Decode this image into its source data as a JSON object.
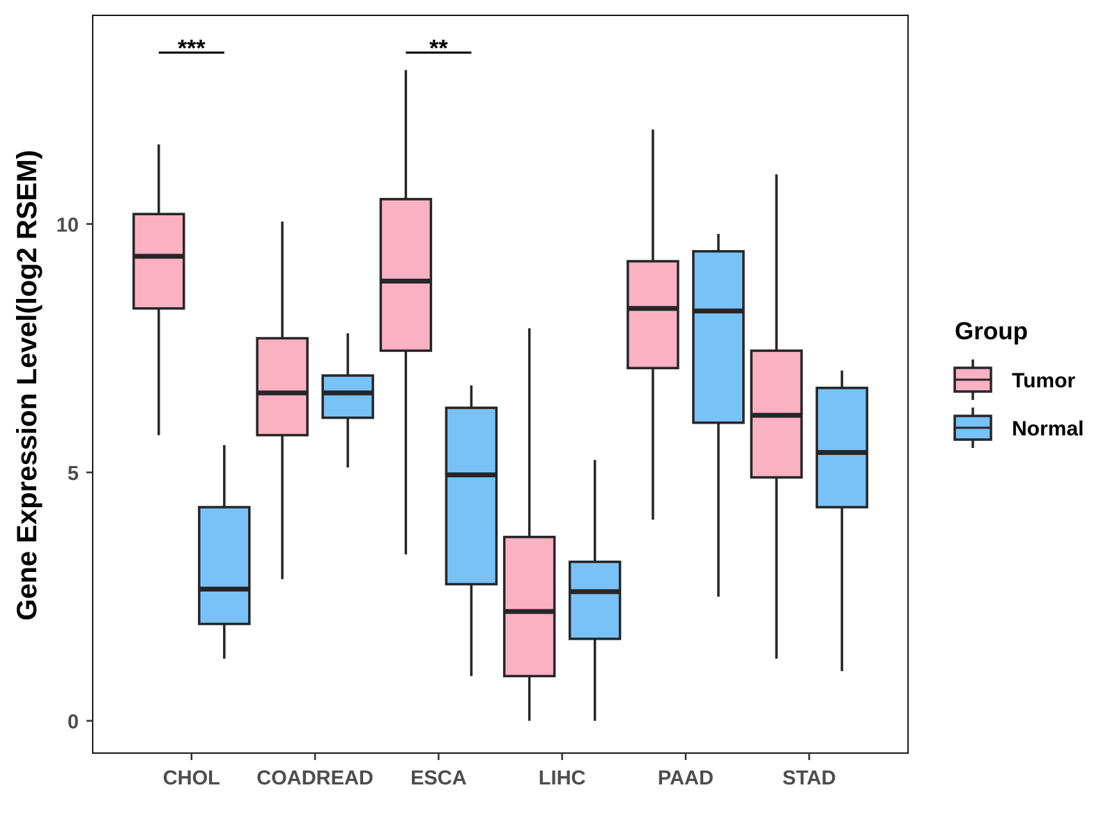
{
  "chart_data": {
    "type": "boxplot",
    "title": "",
    "xlabel": "",
    "ylabel": "Gene Expression Level(log2 RSEM)",
    "ylim": [
      -0.65,
      14.2
    ],
    "yticks": [
      0,
      5,
      10
    ],
    "ytick_labels": [
      "0",
      "5",
      "10"
    ],
    "grid": false,
    "categories": [
      "CHOL",
      "COADREAD",
      "ESCA",
      "LIHC",
      "PAAD",
      "STAD"
    ],
    "legend": {
      "title": "Group",
      "placement": "right",
      "entries": [
        {
          "name": "Tumor",
          "color": "#fbb1c4"
        },
        {
          "name": "Normal",
          "color": "#79c2f8"
        }
      ]
    },
    "series": [
      {
        "name": "Tumor",
        "color": "#fbb1c4",
        "boxes": [
          {
            "category": "CHOL",
            "min": 5.75,
            "q1": 8.3,
            "median": 9.35,
            "q3": 10.2,
            "max": 11.6
          },
          {
            "category": "COADREAD",
            "min": 2.85,
            "q1": 5.75,
            "median": 6.6,
            "q3": 7.7,
            "max": 10.05
          },
          {
            "category": "ESCA",
            "min": 3.35,
            "q1": 7.45,
            "median": 8.85,
            "q3": 10.5,
            "max": 13.1
          },
          {
            "category": "LIHC",
            "min": 0.0,
            "q1": 0.9,
            "median": 2.2,
            "q3": 3.7,
            "max": 7.9
          },
          {
            "category": "PAAD",
            "min": 4.05,
            "q1": 7.1,
            "median": 8.3,
            "q3": 9.25,
            "max": 11.9
          },
          {
            "category": "STAD",
            "min": 1.25,
            "q1": 4.9,
            "median": 6.15,
            "q3": 7.45,
            "max": 11.0
          }
        ]
      },
      {
        "name": "Normal",
        "color": "#79c2f8",
        "boxes": [
          {
            "category": "CHOL",
            "min": 1.25,
            "q1": 1.95,
            "median": 2.65,
            "q3": 4.3,
            "max": 5.55
          },
          {
            "category": "COADREAD",
            "min": 5.1,
            "q1": 6.1,
            "median": 6.6,
            "q3": 6.95,
            "max": 7.8
          },
          {
            "category": "ESCA",
            "min": 0.9,
            "q1": 2.75,
            "median": 4.95,
            "q3": 6.3,
            "max": 6.75
          },
          {
            "category": "LIHC",
            "min": 0.0,
            "q1": 1.65,
            "median": 2.6,
            "q3": 3.2,
            "max": 5.25
          },
          {
            "category": "PAAD",
            "min": 2.5,
            "q1": 6.0,
            "median": 8.25,
            "q3": 9.45,
            "max": 9.8
          },
          {
            "category": "STAD",
            "min": 1.0,
            "q1": 4.3,
            "median": 5.4,
            "q3": 6.7,
            "max": 7.05
          }
        ]
      }
    ],
    "annotations": [
      {
        "category": "CHOL",
        "label": "***",
        "y": 13.45
      },
      {
        "category": "ESCA",
        "label": "**",
        "y": 13.45
      }
    ]
  }
}
